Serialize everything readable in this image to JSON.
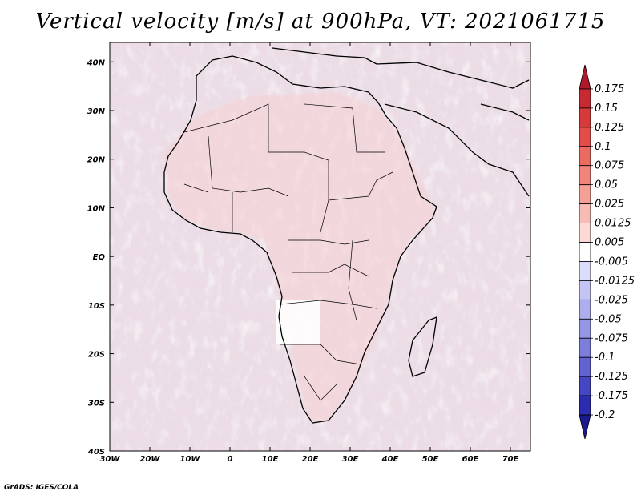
{
  "title": "Vertical velocity [m/s] at 900hPa, VT: 2021061715",
  "credit": "GrADS: IGES/COLA",
  "map": {
    "lon_labels": [
      "30W",
      "20W",
      "10W",
      "0",
      "10E",
      "20E",
      "30E",
      "40E",
      "50E",
      "60E",
      "70E"
    ],
    "lat_labels": [
      "40N",
      "30N",
      "20N",
      "10N",
      "EQ",
      "10S",
      "20S",
      "30S",
      "40S"
    ],
    "lon_range": [
      -30,
      75
    ],
    "lat_range": [
      -40,
      44
    ]
  },
  "colorbar": {
    "labels": [
      "0.175",
      "0.15",
      "0.125",
      "0.1",
      "0.075",
      "0.05",
      "0.025",
      "0.0125",
      "0.005",
      "-0.005",
      "-0.0125",
      "-0.025",
      "-0.05",
      "-0.075",
      "-0.1",
      "-0.125",
      "-0.175",
      "-0.2"
    ],
    "colors": [
      "#b2182b",
      "#c62a32",
      "#d63a3a",
      "#e24d49",
      "#eb6a62",
      "#f1857c",
      "#f5a096",
      "#f8bcb4",
      "#fbdad5",
      "#ffffff",
      "#dcdcfb",
      "#c5c5f5",
      "#aeaeee",
      "#9696e6",
      "#7d7ddc",
      "#6262d0",
      "#4646c2",
      "#2c2cb0",
      "#1a1a8f"
    ]
  }
}
